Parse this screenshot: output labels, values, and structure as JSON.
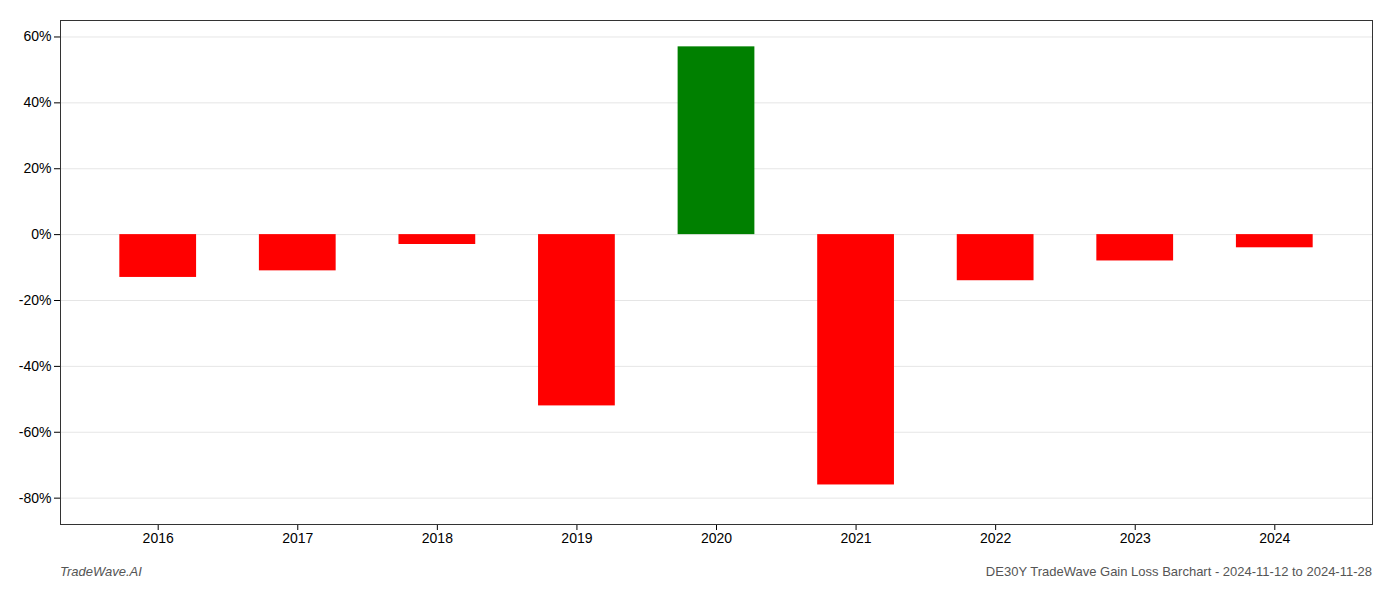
{
  "chart_data": {
    "type": "bar",
    "x": [
      2016,
      2017,
      2018,
      2019,
      2020,
      2021,
      2022,
      2023,
      2024
    ],
    "values": [
      -0.13,
      -0.11,
      -0.03,
      -0.52,
      0.57,
      -0.76,
      -0.14,
      -0.08,
      -0.04
    ],
    "colors": [
      "#ff0000",
      "#ff0000",
      "#ff0000",
      "#ff0000",
      "#008000",
      "#ff0000",
      "#ff0000",
      "#ff0000",
      "#ff0000"
    ],
    "xlim": [
      2015.3,
      2024.7
    ],
    "xticks": [
      2016,
      2017,
      2018,
      2019,
      2020,
      2021,
      2022,
      2023,
      2024
    ],
    "ylim": [
      -0.88,
      0.65
    ],
    "yticks": [
      {
        "value": -0.8,
        "label": "-80%"
      },
      {
        "value": -0.6,
        "label": "-60%"
      },
      {
        "value": -0.4,
        "label": "-40%"
      },
      {
        "value": -0.2,
        "label": "-20%"
      },
      {
        "value": 0.0,
        "label": "0%"
      },
      {
        "value": 0.2,
        "label": "20%"
      },
      {
        "value": 0.4,
        "label": "40%"
      },
      {
        "value": 0.6,
        "label": "60%"
      }
    ],
    "grid": true,
    "annotations": [
      "TradeWave.AI",
      "DE30Y TradeWave Gain Loss Barchart - 2024-11-12 to 2024-11-28"
    ]
  }
}
